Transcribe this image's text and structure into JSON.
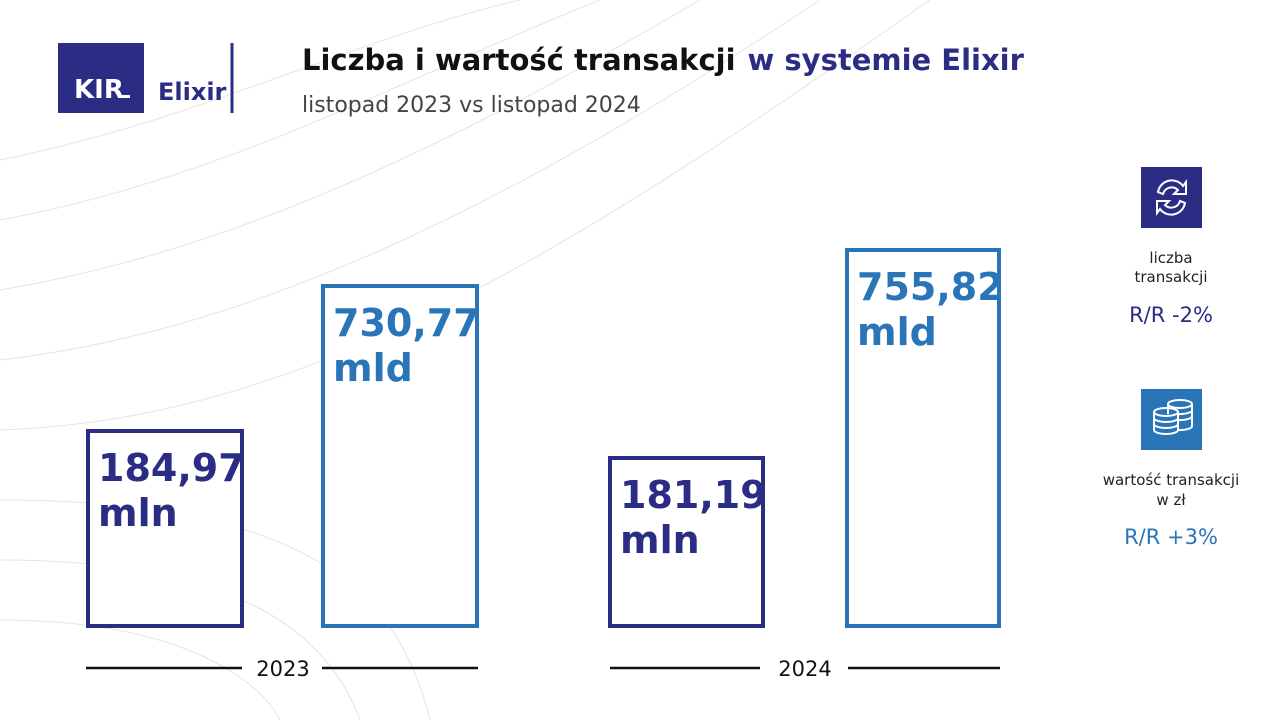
{
  "logo": {
    "brand": "KIR",
    "product": "Elixir"
  },
  "header": {
    "title": "Liczba i wartość transakcji",
    "title_highlight": "w systemie Elixir",
    "subtitle": "listopad 2023 vs listopad 2024"
  },
  "groups": [
    {
      "year": "2023",
      "boxes": [
        {
          "value": "184,97",
          "unit": "mln"
        },
        {
          "value": "730,77",
          "unit": "mld"
        }
      ]
    },
    {
      "year": "2024",
      "boxes": [
        {
          "value": "181,19",
          "unit": "mln"
        },
        {
          "value": "755,82",
          "unit": "mld"
        }
      ]
    }
  ],
  "legend": [
    {
      "label_lines": [
        "liczba",
        "transakcji"
      ],
      "change": "R/R -2%"
    },
    {
      "label_lines": [
        "wartość transakcji",
        "w zł"
      ],
      "change": "R/R +3%"
    }
  ]
}
